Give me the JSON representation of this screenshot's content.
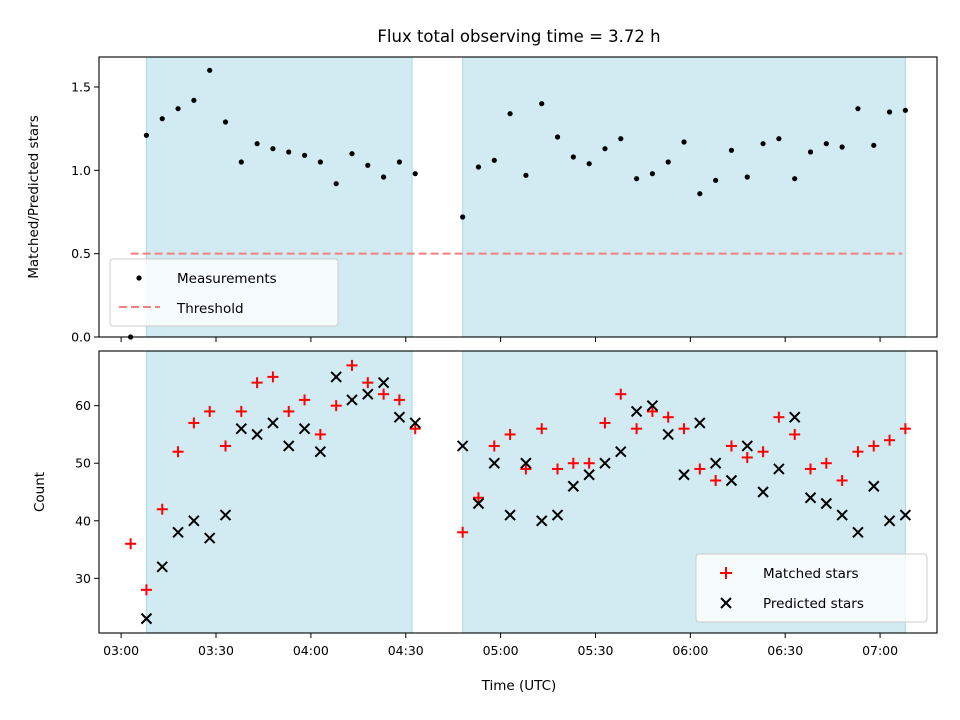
{
  "chart_data": [
    {
      "type": "scatter",
      "title": "Flux total observing time = 3.72 h",
      "xlabel": "",
      "ylabel": "Matched/Predicted stars",
      "ylim": [
        0,
        1.68
      ],
      "yticks": [
        "0.0",
        "0.5",
        "1.0",
        "1.5"
      ],
      "shaded_intervals": [
        [
          "03:08",
          "04:32"
        ],
        [
          "04:48",
          "07:08"
        ]
      ],
      "shade_color": "#add8e6",
      "threshold": {
        "name": "Threshold",
        "value": 0.5,
        "x_range": [
          "03:03",
          "07:07"
        ],
        "color": "#f08080"
      },
      "legend": {
        "position": "lower-left",
        "entries": [
          "Measurements",
          "Threshold"
        ]
      },
      "series": [
        {
          "name": "Measurements",
          "color": "#000000",
          "x": [
            "03:03",
            "03:08",
            "03:13",
            "03:18",
            "03:23",
            "03:28",
            "03:33",
            "03:38",
            "03:43",
            "03:48",
            "03:53",
            "03:58",
            "04:03",
            "04:08",
            "04:13",
            "04:18",
            "04:23",
            "04:28",
            "04:33",
            "04:48",
            "04:53",
            "04:58",
            "05:03",
            "05:08",
            "05:13",
            "05:18",
            "05:23",
            "05:28",
            "05:33",
            "05:38",
            "05:43",
            "05:48",
            "05:53",
            "05:58",
            "06:03",
            "06:08",
            "06:13",
            "06:18",
            "06:23",
            "06:28",
            "06:33",
            "06:38",
            "06:43",
            "06:48",
            "06:53",
            "06:58",
            "07:03",
            "07:08"
          ],
          "values": [
            0.0,
            1.21,
            1.31,
            1.37,
            1.42,
            1.6,
            1.29,
            1.05,
            1.16,
            1.13,
            1.11,
            1.09,
            1.05,
            0.92,
            1.1,
            1.03,
            0.96,
            1.05,
            0.98,
            0.72,
            1.02,
            1.06,
            1.34,
            0.97,
            1.4,
            1.2,
            1.08,
            1.04,
            1.13,
            1.19,
            0.95,
            0.98,
            1.05,
            1.17,
            0.86,
            0.94,
            1.12,
            0.96,
            1.16,
            1.19,
            0.95,
            1.11,
            1.16,
            1.14,
            1.37,
            1.15,
            1.35,
            1.36
          ]
        }
      ]
    },
    {
      "type": "scatter",
      "title": "",
      "xlabel": "Time (UTC)",
      "ylabel": "Count",
      "ylim": [
        20.5,
        69.5
      ],
      "yticks": [
        "30",
        "40",
        "50",
        "60"
      ],
      "xlim": [
        "02:53",
        "07:18"
      ],
      "xticks": [
        "03:00",
        "03:30",
        "04:00",
        "04:30",
        "05:00",
        "05:30",
        "06:00",
        "06:30",
        "07:00"
      ],
      "shaded_intervals": [
        [
          "03:08",
          "04:32"
        ],
        [
          "04:48",
          "07:08"
        ]
      ],
      "shade_color": "#add8e6",
      "legend": {
        "position": "lower-right",
        "entries": [
          "Matched stars",
          "Predicted stars"
        ]
      },
      "series": [
        {
          "name": "Matched stars",
          "marker": "plus",
          "color": "#ff0000",
          "x": [
            "03:03",
            "03:08",
            "03:13",
            "03:18",
            "03:23",
            "03:28",
            "03:33",
            "03:38",
            "03:43",
            "03:48",
            "03:53",
            "03:58",
            "04:03",
            "04:08",
            "04:13",
            "04:18",
            "04:23",
            "04:28",
            "04:33",
            "04:48",
            "04:53",
            "04:58",
            "05:03",
            "05:08",
            "05:13",
            "05:18",
            "05:23",
            "05:28",
            "05:33",
            "05:38",
            "05:43",
            "05:48",
            "05:53",
            "05:58",
            "06:03",
            "06:08",
            "06:13",
            "06:18",
            "06:23",
            "06:28",
            "06:33",
            "06:38",
            "06:43",
            "06:48",
            "06:53",
            "06:58",
            "07:03",
            "07:08"
          ],
          "values": [
            36,
            28,
            42,
            52,
            57,
            59,
            53,
            59,
            64,
            65,
            59,
            61,
            55,
            60,
            67,
            64,
            62,
            61,
            56,
            38,
            44,
            53,
            55,
            49,
            56,
            49,
            50,
            50,
            57,
            62,
            56,
            59,
            58,
            56,
            49,
            47,
            53,
            51,
            52,
            58,
            55,
            49,
            50,
            47,
            52,
            53,
            54,
            56
          ]
        },
        {
          "name": "Predicted stars",
          "marker": "x",
          "color": "#000000",
          "x": [
            "03:08",
            "03:13",
            "03:18",
            "03:23",
            "03:28",
            "03:33",
            "03:38",
            "03:43",
            "03:48",
            "03:53",
            "03:58",
            "04:03",
            "04:08",
            "04:13",
            "04:18",
            "04:23",
            "04:28",
            "04:33",
            "04:48",
            "04:53",
            "04:58",
            "05:03",
            "05:08",
            "05:13",
            "05:18",
            "05:23",
            "05:28",
            "05:33",
            "05:38",
            "05:43",
            "05:48",
            "05:53",
            "05:58",
            "06:03",
            "06:08",
            "06:13",
            "06:18",
            "06:23",
            "06:28",
            "06:33",
            "06:38",
            "06:43",
            "06:48",
            "06:53",
            "06:58",
            "07:03",
            "07:08"
          ],
          "values": [
            23,
            32,
            38,
            40,
            37,
            41,
            56,
            55,
            57,
            53,
            56,
            52,
            65,
            61,
            62,
            64,
            58,
            57,
            53,
            43,
            50,
            41,
            50,
            40,
            41,
            46,
            48,
            50,
            52,
            59,
            60,
            55,
            48,
            57,
            50,
            47,
            53,
            45,
            49,
            58,
            44,
            43,
            41,
            38,
            46,
            40,
            41
          ]
        }
      ]
    }
  ]
}
